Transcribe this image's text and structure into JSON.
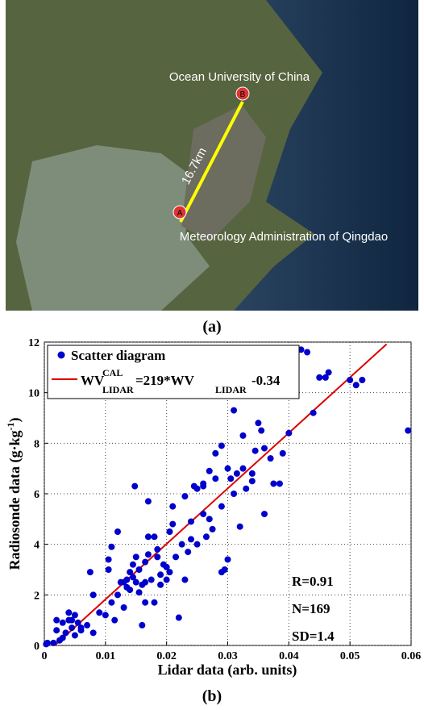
{
  "map": {
    "top_label": "Ocean University of China",
    "distance": "16.7km",
    "bottom_label": "Meteorology Administration of Qingdao",
    "marker_a": "A",
    "marker_b": "B",
    "caption": "(a)"
  },
  "chart_data": {
    "type": "scatter",
    "caption": "(b)",
    "xlabel": "Lidar data (arb. units)",
    "ylabel_parts": [
      "Radiosonde data (g·kg",
      "-1",
      ")"
    ],
    "xlim": [
      0,
      0.06
    ],
    "xticks": [
      0,
      0.01,
      0.02,
      0.03,
      0.04,
      0.05,
      0.06
    ],
    "ylim": [
      0,
      12
    ],
    "yticks": [
      0,
      2,
      4,
      6,
      8,
      10,
      12
    ],
    "grid": true,
    "x": [
      0.0003,
      0.0005,
      0.0015,
      0.002,
      0.002,
      0.0025,
      0.003,
      0.003,
      0.0035,
      0.004,
      0.004,
      0.0045,
      0.005,
      0.005,
      0.0055,
      0.006,
      0.007,
      0.0075,
      0.008,
      0.008,
      0.009,
      0.01,
      0.0105,
      0.0105,
      0.011,
      0.011,
      0.0115,
      0.012,
      0.012,
      0.013,
      0.013,
      0.0135,
      0.014,
      0.014,
      0.0145,
      0.015,
      0.015,
      0.0148,
      0.0155,
      0.0155,
      0.016,
      0.016,
      0.0165,
      0.0165,
      0.017,
      0.017,
      0.017,
      0.0175,
      0.018,
      0.018,
      0.0185,
      0.0185,
      0.019,
      0.0195,
      0.02,
      0.02,
      0.0205,
      0.0205,
      0.021,
      0.021,
      0.0215,
      0.022,
      0.0225,
      0.023,
      0.023,
      0.0235,
      0.024,
      0.024,
      0.0245,
      0.025,
      0.025,
      0.026,
      0.026,
      0.0265,
      0.027,
      0.027,
      0.0275,
      0.028,
      0.028,
      0.029,
      0.029,
      0.029,
      0.0295,
      0.03,
      0.03,
      0.0305,
      0.031,
      0.031,
      0.0315,
      0.032,
      0.0325,
      0.033,
      0.034,
      0.034,
      0.0345,
      0.035,
      0.0355,
      0.036,
      0.036,
      0.037,
      0.0375,
      0.0385,
      0.039,
      0.04,
      0.042,
      0.043,
      0.044,
      0.045,
      0.046,
      0.0465,
      0.05,
      0.051,
      0.052,
      0.0595,
      0.0045,
      0.006,
      0.0125,
      0.0135,
      0.0145,
      0.019,
      0.0165,
      0.026,
      0.0325
    ],
    "series": [
      {
        "name": "Scatter diagram",
        "color": "#0000cc",
        "values": [
          0.05,
          0.1,
          0.1,
          0.6,
          1.0,
          0.2,
          0.3,
          0.9,
          0.5,
          1.0,
          1.3,
          0.7,
          1.2,
          0.4,
          0.9,
          0.6,
          0.8,
          2.9,
          0.5,
          2.0,
          1.3,
          1.2,
          3.0,
          3.4,
          3.9,
          1.7,
          1.0,
          2.0,
          4.5,
          2.5,
          1.5,
          2.6,
          2.9,
          2.2,
          3.2,
          2.5,
          3.5,
          6.3,
          3.0,
          2.1,
          0.8,
          2.4,
          3.3,
          1.7,
          5.7,
          3.6,
          4.3,
          2.6,
          4.3,
          1.7,
          3.5,
          3.8,
          2.8,
          3.2,
          2.6,
          3.1,
          2.9,
          4.5,
          5.5,
          4.8,
          3.5,
          1.1,
          4.0,
          2.6,
          5.9,
          3.7,
          4.2,
          4.9,
          6.3,
          6.2,
          4.0,
          6.4,
          5.2,
          4.3,
          5.0,
          6.9,
          4.6,
          7.6,
          6.6,
          7.9,
          5.5,
          2.9,
          3.0,
          3.4,
          7.0,
          6.6,
          9.3,
          6.0,
          6.8,
          4.7,
          8.3,
          6.2,
          6.5,
          6.8,
          7.7,
          8.8,
          8.5,
          5.2,
          7.8,
          7.4,
          6.4,
          6.4,
          7.6,
          8.4,
          11.7,
          11.6,
          9.2,
          10.6,
          10.6,
          10.8,
          10.5,
          10.3,
          10.5,
          8.5,
          1.0,
          0.7,
          2.5,
          2.3,
          2.7,
          2.4,
          2.5,
          6.3,
          7.0
        ]
      }
    ],
    "fit_line": {
      "color": "#dd0000",
      "x": [
        0.0017,
        0.056
      ],
      "y": [
        0,
        11.92
      ],
      "label_parts": [
        "WV",
        "CAL",
        "LIDAR",
        "=219*WV",
        "LIDAR",
        "-0.34"
      ]
    },
    "annotations": [
      "R=0.91",
      "N=169",
      "SD=1.4"
    ]
  }
}
